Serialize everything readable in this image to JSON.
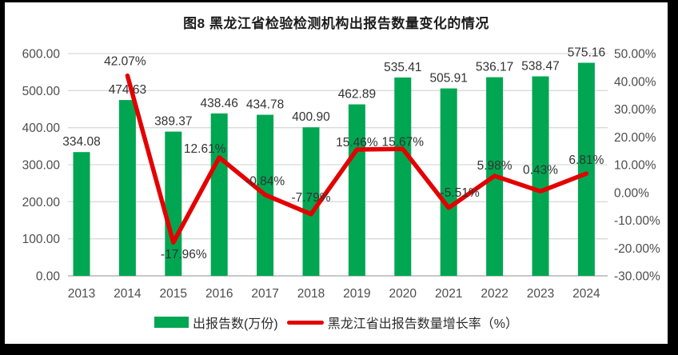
{
  "chart_data": {
    "type": "bar+line",
    "title": "图8 黑龙江省检验检测机构出报告数量变化的情况",
    "categories": [
      "2013",
      "2014",
      "2015",
      "2016",
      "2017",
      "2018",
      "2019",
      "2020",
      "2021",
      "2022",
      "2023",
      "2024"
    ],
    "series": [
      {
        "name": "出报告数(万份)",
        "type": "bar",
        "axis": "left",
        "color": "#00A651",
        "values": [
          334.08,
          474.63,
          389.37,
          438.46,
          434.78,
          400.9,
          462.89,
          535.41,
          505.91,
          536.17,
          538.47,
          575.16
        ],
        "labels": [
          "334.08",
          "474.63",
          "389.37",
          "438.46",
          "434.78",
          "400.90",
          "462.89",
          "535.41",
          "505.91",
          "536.17",
          "538.47",
          "575.16"
        ]
      },
      {
        "name": "黑龙江省出报告数量增长率（%）",
        "type": "line",
        "axis": "right",
        "color": "#E30000",
        "values": [
          null,
          42.07,
          -17.96,
          12.61,
          -0.84,
          -7.79,
          15.46,
          15.67,
          -5.51,
          5.98,
          0.43,
          6.81
        ],
        "labels": [
          null,
          "42.07%",
          "-17.96%",
          "12.61%",
          "-0.84%",
          "-7.79%",
          "15.46%",
          "15.67%",
          "-5.51%",
          "5.98%",
          "0.43%",
          "6.81%"
        ]
      }
    ],
    "left_axis": {
      "min": 0,
      "max": 600,
      "step": 100,
      "tick_labels": [
        "600.00",
        "500.00",
        "400.00",
        "300.00",
        "200.00",
        "100.00",
        "0.00"
      ]
    },
    "right_axis": {
      "min": -30,
      "max": 50,
      "step": 10,
      "tick_labels": [
        "50.00%",
        "40.00%",
        "30.00%",
        "20.00%",
        "10.00%",
        "0.00%",
        "-10.00%",
        "-20.00%",
        "-30.00%"
      ]
    },
    "grid": true,
    "legend_position": "bottom"
  },
  "legend": {
    "bar_label": "出报告数(万份)",
    "line_label": "黑龙江省出报告数量增长率（%）"
  },
  "colors": {
    "bar": "#00A651",
    "line": "#E30000",
    "grid": "#D9D9D9",
    "axis": "#BFBFBF",
    "tick_text": "#4d4d4d",
    "label_text": "#333333",
    "frame": "#000000",
    "background": "#FFFFFF"
  }
}
